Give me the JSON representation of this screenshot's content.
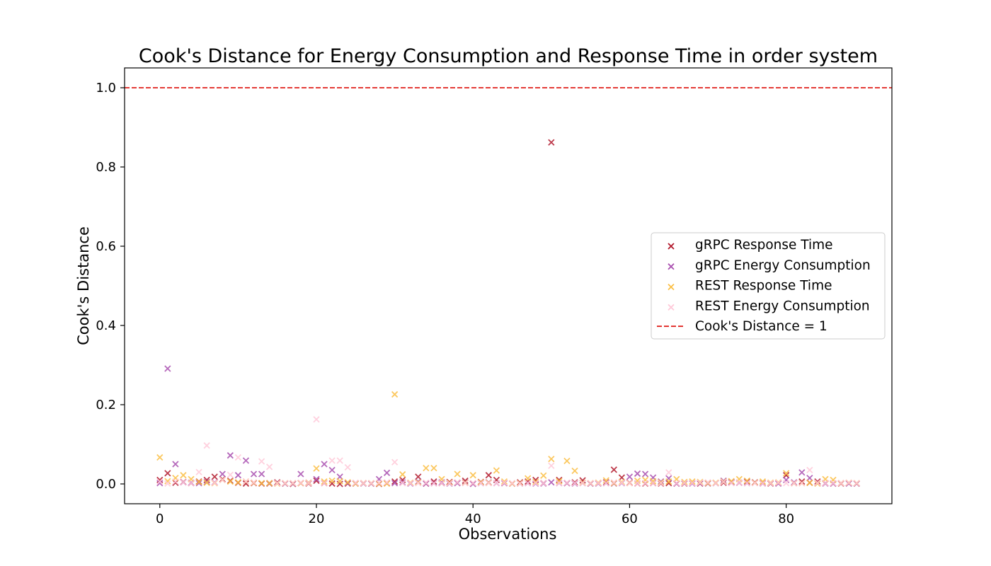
{
  "chart_data": {
    "type": "scatter",
    "title": "Cook's Distance for Energy Consumption and Response Time in order system",
    "xlabel": "Observations",
    "ylabel": "Cook's Distance",
    "xlim": [
      -4.5,
      93.5
    ],
    "ylim": [
      -0.05,
      1.05
    ],
    "xticks": [
      0,
      20,
      40,
      60,
      80
    ],
    "yticks": [
      0.0,
      0.2,
      0.4,
      0.6,
      0.8,
      1.0
    ],
    "ytick_labels": [
      "0.0",
      "0.2",
      "0.4",
      "0.6",
      "0.8",
      "1.0"
    ],
    "grid": false,
    "legend_position": "center-right",
    "marker": "x",
    "series": [
      {
        "name": "gRPC Response Time",
        "color": "#b2182b",
        "values": [
          0.01,
          0.027,
          0.003,
          0.005,
          0.002,
          0.006,
          0.01,
          0.018,
          0.012,
          0.008,
          0.003,
          0.001,
          0.002,
          0.001,
          0.001,
          0.004,
          0.001,
          0.0,
          0.002,
          0.001,
          0.008,
          0.002,
          0.001,
          0.0,
          0.001,
          0.001,
          0.002,
          0.001,
          0.0,
          0.002,
          0.006,
          0.01,
          0.002,
          0.018,
          0.001,
          0.006,
          0.002,
          0.005,
          0.003,
          0.008,
          0.001,
          0.005,
          0.022,
          0.01,
          0.002,
          0.001,
          0.004,
          0.006,
          0.01,
          0.002,
          0.862,
          0.01,
          0.002,
          0.004,
          0.009,
          0.001,
          0.002,
          0.004,
          0.036,
          0.016,
          0.003,
          0.001,
          0.001,
          0.002,
          0.001,
          0.002,
          0.001,
          0.001,
          0.002,
          0.001,
          0.002,
          0.002,
          0.003,
          0.004,
          0.003,
          0.006,
          0.004,
          0.002,
          0.001,
          0.002,
          0.022,
          0.002,
          0.006,
          0.003,
          0.006,
          0.002,
          0.001,
          0.001,
          0.002,
          0.001
        ]
      },
      {
        "name": "gRPC Energy Consumption",
        "color": "#a94fb0",
        "values": [
          0.002,
          0.291,
          0.05,
          0.004,
          0.003,
          0.002,
          0.005,
          0.004,
          0.025,
          0.072,
          0.022,
          0.059,
          0.025,
          0.025,
          0.002,
          0.002,
          0.001,
          0.001,
          0.025,
          0.003,
          0.012,
          0.05,
          0.035,
          0.018,
          0.002,
          0.001,
          0.001,
          0.001,
          0.012,
          0.028,
          0.002,
          0.004,
          0.001,
          0.006,
          0.001,
          0.002,
          0.004,
          0.001,
          0.002,
          0.004,
          0.0,
          0.002,
          0.004,
          0.002,
          0.002,
          0.001,
          0.001,
          0.002,
          0.001,
          0.001,
          0.004,
          0.002,
          0.002,
          0.001,
          0.002,
          0.001,
          0.001,
          0.002,
          0.001,
          0.002,
          0.018,
          0.026,
          0.025,
          0.016,
          0.006,
          0.014,
          0.001,
          0.002,
          0.001,
          0.002,
          0.001,
          0.002,
          0.008,
          0.005,
          0.003,
          0.002,
          0.003,
          0.001,
          0.002,
          0.001,
          0.01,
          0.004,
          0.029,
          0.015,
          0.002,
          0.001,
          0.001,
          0.002,
          0.001,
          0.001
        ]
      },
      {
        "name": "REST Response Time",
        "color": "#fbbf45",
        "values": [
          0.067,
          0.007,
          0.015,
          0.022,
          0.012,
          0.005,
          0.003,
          0.002,
          0.01,
          0.006,
          0.004,
          0.006,
          0.003,
          0.002,
          0.002,
          0.001,
          0.002,
          0.002,
          0.002,
          0.003,
          0.039,
          0.006,
          0.008,
          0.007,
          0.004,
          0.001,
          0.002,
          0.002,
          0.001,
          0.001,
          0.226,
          0.024,
          0.003,
          0.004,
          0.04,
          0.04,
          0.012,
          0.003,
          0.025,
          0.003,
          0.022,
          0.004,
          0.003,
          0.034,
          0.006,
          0.001,
          0.002,
          0.014,
          0.005,
          0.021,
          0.063,
          0.007,
          0.058,
          0.033,
          0.003,
          0.002,
          0.003,
          0.009,
          0.002,
          0.005,
          0.002,
          0.008,
          0.01,
          0.007,
          0.004,
          0.006,
          0.012,
          0.005,
          0.006,
          0.005,
          0.002,
          0.003,
          0.006,
          0.007,
          0.012,
          0.008,
          0.003,
          0.006,
          0.003,
          0.004,
          0.027,
          0.002,
          0.002,
          0.003,
          0.001,
          0.012,
          0.01,
          0.002,
          0.003,
          0.002
        ]
      },
      {
        "name": "REST Energy Consumption",
        "color": "#ffc9d9",
        "values": [
          0.006,
          0.001,
          0.006,
          0.004,
          0.002,
          0.03,
          0.097,
          0.003,
          0.01,
          0.023,
          0.067,
          0.006,
          0.004,
          0.057,
          0.043,
          0.002,
          0.002,
          0.002,
          0.003,
          0.002,
          0.163,
          0.002,
          0.059,
          0.059,
          0.042,
          0.003,
          0.002,
          0.002,
          0.003,
          0.004,
          0.055,
          0.002,
          0.002,
          0.002,
          0.003,
          0.001,
          0.002,
          0.002,
          0.004,
          0.002,
          0.002,
          0.002,
          0.002,
          0.002,
          0.003,
          0.002,
          0.001,
          0.002,
          0.002,
          0.002,
          0.046,
          0.002,
          0.003,
          0.002,
          0.002,
          0.002,
          0.002,
          0.002,
          0.004,
          0.003,
          0.002,
          0.001,
          0.002,
          0.002,
          0.002,
          0.029,
          0.002,
          0.002,
          0.002,
          0.003,
          0.004,
          0.002,
          0.005,
          0.002,
          0.003,
          0.002,
          0.002,
          0.001,
          0.002,
          0.003,
          0.002,
          0.002,
          0.002,
          0.035,
          0.003,
          0.002,
          0.002,
          0.002,
          0.003,
          0.002
        ]
      }
    ],
    "reference_line": {
      "name": "Cook's Distance = 1",
      "y": 1.0,
      "color": "#e0201d",
      "style": "dashed"
    }
  }
}
